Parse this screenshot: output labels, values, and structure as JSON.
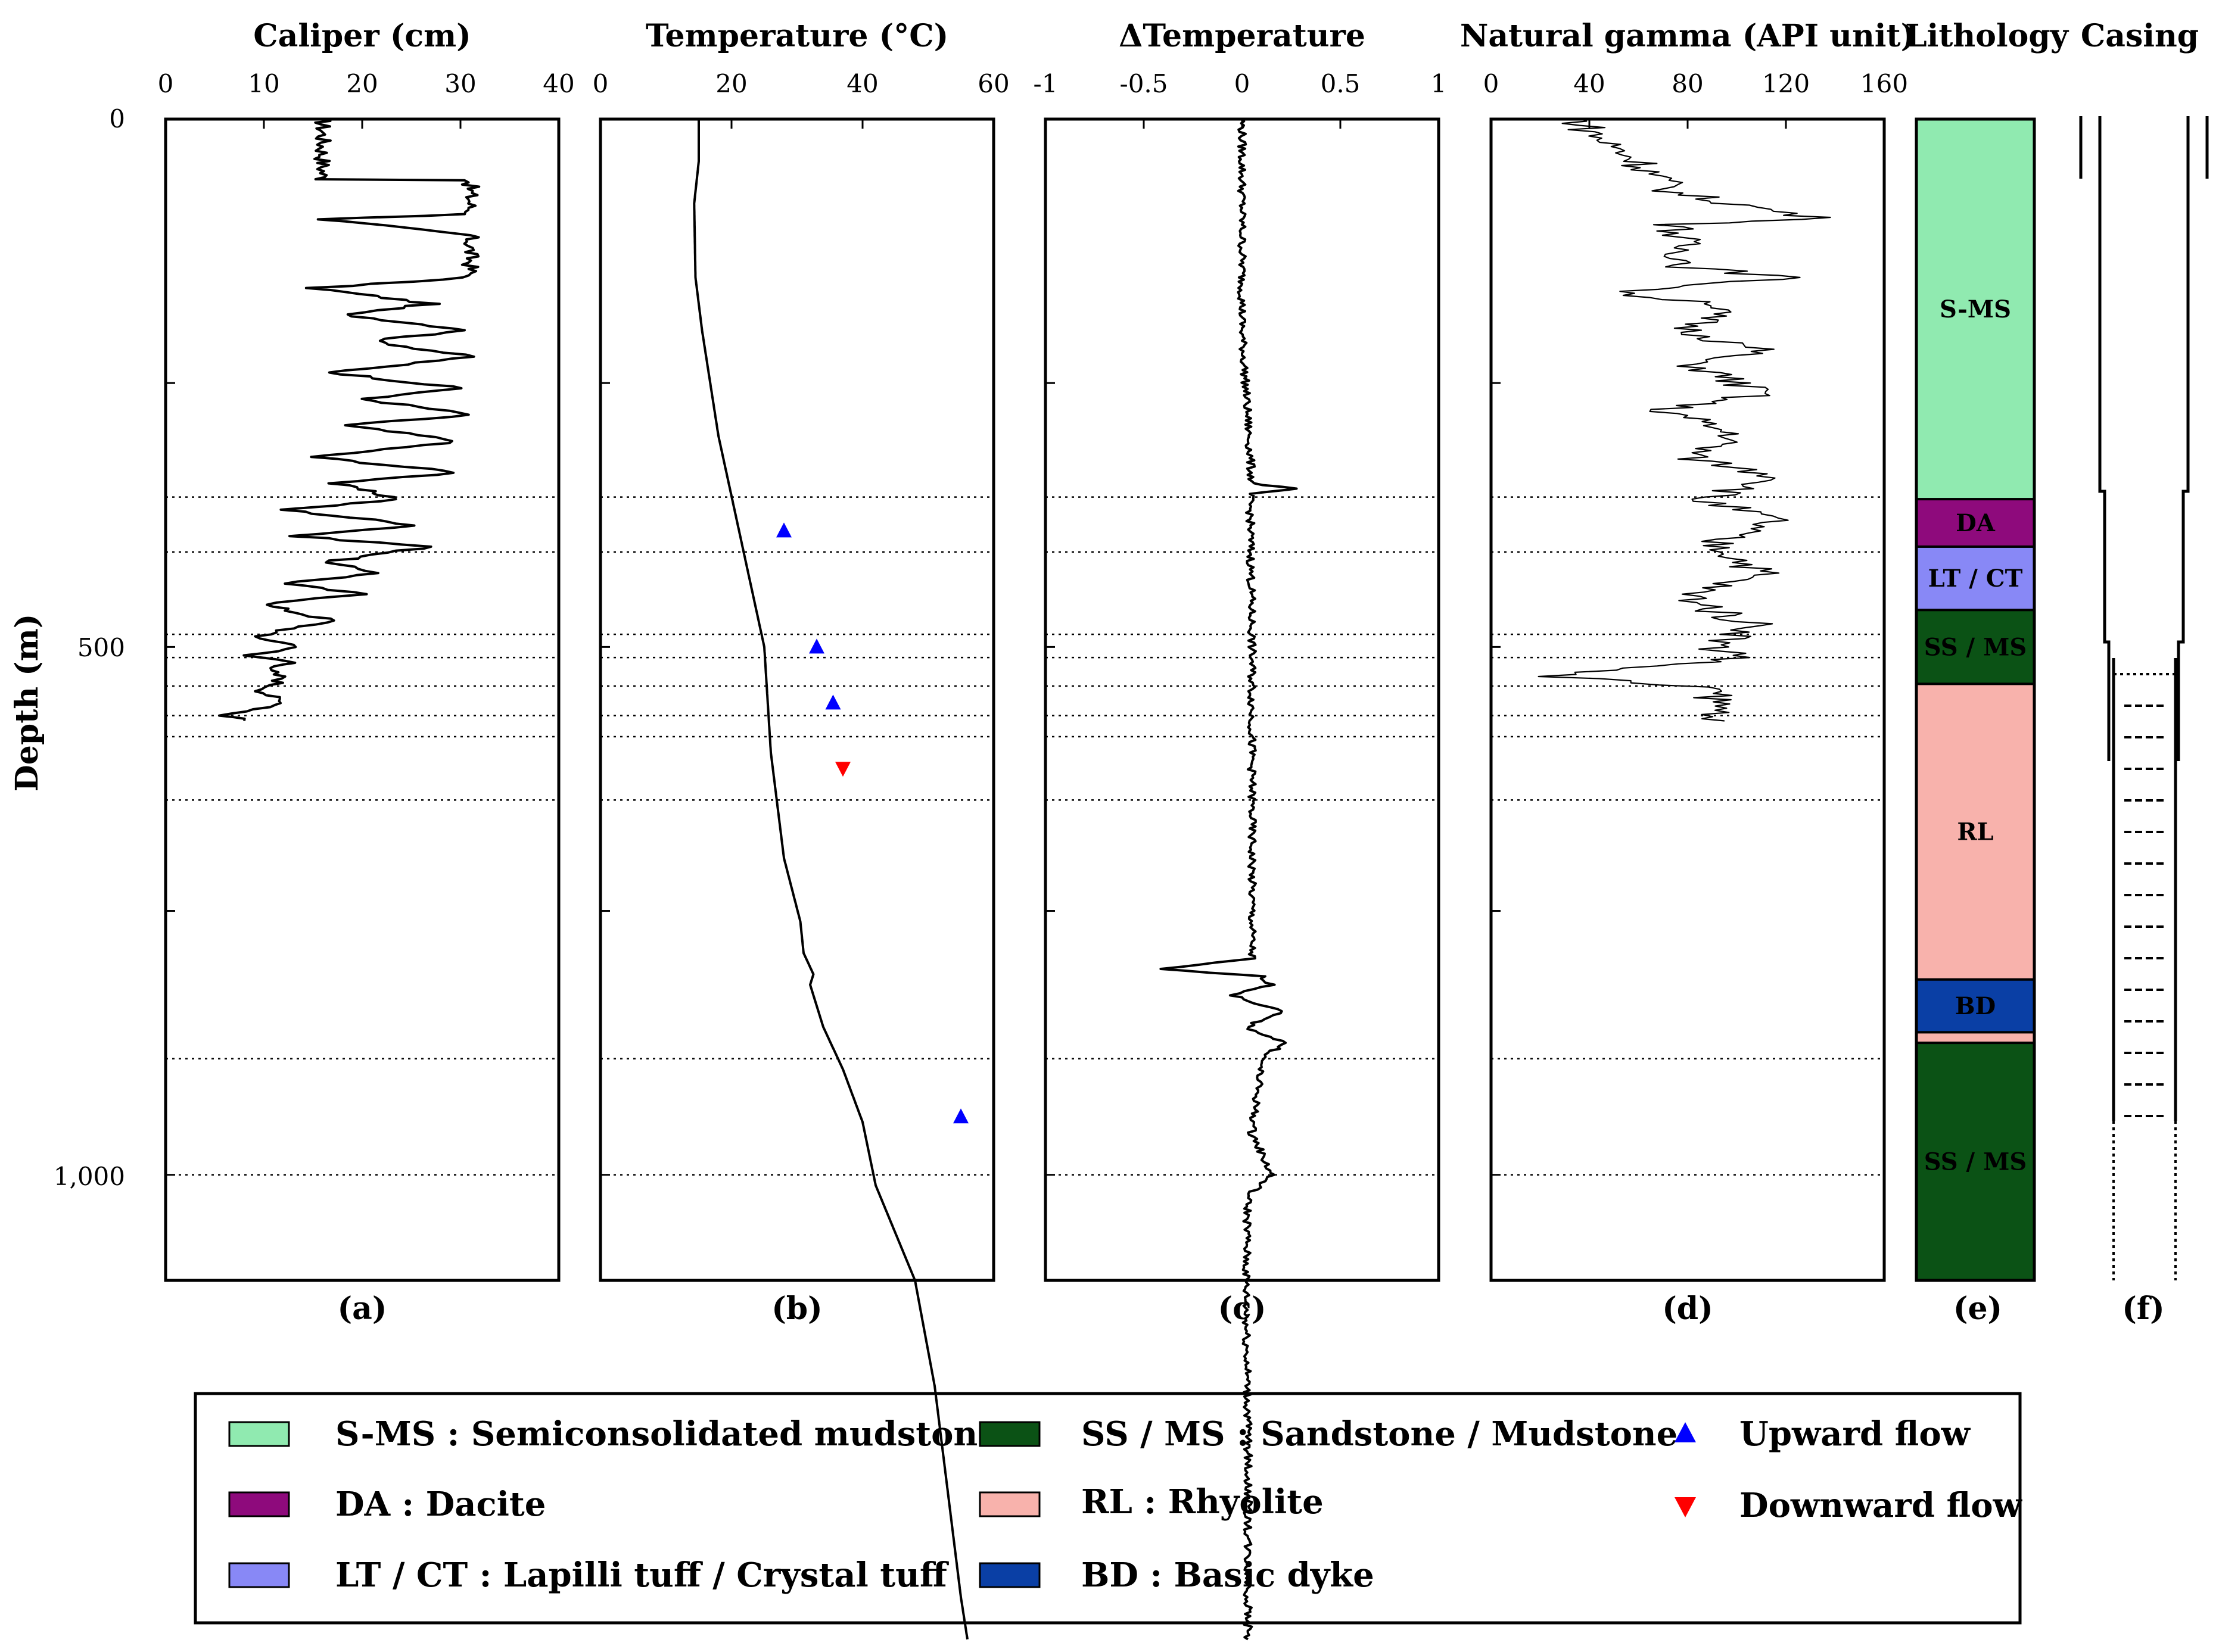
{
  "chart_data": {
    "type": "well-log",
    "y_axis": {
      "label": "Depth (m)",
      "range": [
        0,
        1100
      ],
      "ticks": [
        0,
        500,
        1000
      ],
      "tick_labels": [
        "0",
        "500",
        "1,000"
      ]
    },
    "guide_depths": [
      358,
      410,
      488,
      510,
      537,
      565,
      585,
      645,
      890,
      1000
    ],
    "tracks": [
      {
        "id": "a",
        "title": "Caliper (cm)",
        "panel_label": "(a)",
        "xlim": [
          0,
          40
        ],
        "ticks": [
          0,
          10,
          20,
          30,
          40
        ],
        "profile": [
          [
            0,
            16
          ],
          [
            5,
            16
          ],
          [
            30,
            16
          ],
          [
            57,
            16
          ],
          [
            58,
            31
          ],
          [
            70,
            31
          ],
          [
            90,
            31
          ],
          [
            95,
            16
          ],
          [
            110,
            31
          ],
          [
            150,
            31
          ],
          [
            160,
            15
          ],
          [
            175,
            27
          ],
          [
            185,
            18
          ],
          [
            200,
            31
          ],
          [
            210,
            21
          ],
          [
            225,
            31
          ],
          [
            240,
            17
          ],
          [
            255,
            30
          ],
          [
            265,
            20
          ],
          [
            280,
            31
          ],
          [
            290,
            18
          ],
          [
            305,
            30
          ],
          [
            320,
            15
          ],
          [
            335,
            30
          ],
          [
            345,
            17
          ],
          [
            360,
            24
          ],
          [
            370,
            12
          ],
          [
            385,
            26
          ],
          [
            395,
            13
          ],
          [
            405,
            27
          ],
          [
            420,
            16
          ],
          [
            430,
            22
          ],
          [
            440,
            12
          ],
          [
            450,
            20
          ],
          [
            460,
            10
          ],
          [
            475,
            17
          ],
          [
            490,
            9
          ],
          [
            500,
            14
          ],
          [
            508,
            8
          ],
          [
            515,
            14
          ],
          [
            520,
            10
          ],
          [
            530,
            12
          ],
          [
            542,
            10
          ],
          [
            555,
            12
          ],
          [
            565,
            6
          ],
          [
            568,
            8
          ],
          [
            570,
            8
          ]
        ]
      },
      {
        "id": "b",
        "title": "Temperature (°C)",
        "panel_label": "(b)",
        "xlim": [
          0,
          60
        ],
        "ticks": [
          0,
          20,
          40,
          60
        ],
        "profile": [
          [
            0,
            15
          ],
          [
            40,
            15
          ],
          [
            80,
            14.3
          ],
          [
            150,
            14.5
          ],
          [
            200,
            15.5
          ],
          [
            300,
            18
          ],
          [
            400,
            21.5
          ],
          [
            500,
            25
          ],
          [
            600,
            26
          ],
          [
            650,
            27
          ],
          [
            700,
            28
          ],
          [
            760,
            30.5
          ],
          [
            790,
            31
          ],
          [
            810,
            32.5
          ],
          [
            820,
            32
          ],
          [
            860,
            34
          ],
          [
            900,
            37
          ],
          [
            950,
            40
          ],
          [
            1010,
            42
          ],
          [
            1100,
            48
          ],
          [
            1200,
            51
          ],
          [
            1300,
            53
          ],
          [
            1400,
            55
          ],
          [
            1440,
            56
          ]
        ]
      },
      {
        "id": "c",
        "title": "ΔTemperature",
        "panel_label": "(c)",
        "xlim": [
          -1,
          1
        ],
        "ticks": [
          -1,
          -0.5,
          0,
          0.5,
          1
        ],
        "tick_labels": [
          "-1",
          "-0.5",
          "0",
          "0.5",
          "1"
        ],
        "profile": [
          [
            0,
            0
          ],
          [
            200,
            0
          ],
          [
            345,
            0.05
          ],
          [
            350,
            0.26
          ],
          [
            355,
            0.04
          ],
          [
            500,
            0.05
          ],
          [
            740,
            0.05
          ],
          [
            795,
            0.05
          ],
          [
            805,
            -0.42
          ],
          [
            812,
            0.1
          ],
          [
            820,
            0.15
          ],
          [
            830,
            -0.05
          ],
          [
            845,
            0.2
          ],
          [
            860,
            0.02
          ],
          [
            875,
            0.22
          ],
          [
            890,
            0.1
          ],
          [
            960,
            0.05
          ],
          [
            1000,
            0.15
          ],
          [
            1020,
            0.03
          ],
          [
            1100,
            0.02
          ],
          [
            1250,
            0.03
          ],
          [
            1440,
            0.03
          ]
        ]
      },
      {
        "id": "d",
        "title": "Natural gamma (API unit)",
        "panel_label": "(d)",
        "xlim": [
          0,
          160
        ],
        "ticks": [
          0,
          40,
          80,
          120,
          160
        ],
        "profile": [
          [
            0,
            35
          ],
          [
            20,
            45
          ],
          [
            40,
            60
          ],
          [
            70,
            75
          ],
          [
            95,
            135
          ],
          [
            100,
            75
          ],
          [
            140,
            80
          ],
          [
            150,
            120
          ],
          [
            165,
            50
          ],
          [
            175,
            95
          ],
          [
            200,
            80
          ],
          [
            220,
            110
          ],
          [
            230,
            80
          ],
          [
            260,
            110
          ],
          [
            275,
            70
          ],
          [
            300,
            100
          ],
          [
            320,
            80
          ],
          [
            340,
            120
          ],
          [
            360,
            85
          ],
          [
            380,
            115
          ],
          [
            400,
            90
          ],
          [
            430,
            110
          ],
          [
            450,
            80
          ],
          [
            470,
            95
          ],
          [
            480,
            110
          ],
          [
            500,
            90
          ],
          [
            510,
            105
          ],
          [
            528,
            20
          ],
          [
            530,
            40
          ],
          [
            540,
            90
          ],
          [
            570,
            95
          ]
        ]
      },
      {
        "id": "e",
        "title": "Lithology",
        "panel_label": "(e)",
        "layers": [
          {
            "from": 0,
            "to": 360,
            "code": "S-MS"
          },
          {
            "from": 360,
            "to": 405,
            "code": "DA"
          },
          {
            "from": 405,
            "to": 465,
            "code": "LT / CT"
          },
          {
            "from": 465,
            "to": 535,
            "code": "SS / MS"
          },
          {
            "from": 535,
            "to": 815,
            "code": "RL"
          },
          {
            "from": 815,
            "to": 865,
            "code": "BD"
          },
          {
            "from": 865,
            "to": 875,
            "code": "RL"
          },
          {
            "from": 875,
            "to": 1100,
            "code": "SS / MS"
          }
        ]
      },
      {
        "id": "f",
        "title": "Casing",
        "panel_label": "(f)"
      }
    ],
    "flow_markers": [
      {
        "direction": "Upward flow",
        "depth": 390,
        "temperature": 28
      },
      {
        "direction": "Upward flow",
        "depth": 500,
        "temperature": 33
      },
      {
        "direction": "Upward flow",
        "depth": 553,
        "temperature": 35.5
      },
      {
        "direction": "Downward flow",
        "depth": 615,
        "temperature": 37
      },
      {
        "direction": "Upward flow",
        "depth": 945,
        "temperature": 55
      }
    ]
  },
  "lithology_legend": [
    {
      "code": "S-MS",
      "label": "S-MS : Semiconsolidated mudstone",
      "color": "#90EAB0"
    },
    {
      "code": "DA",
      "label": "DA : Dacite",
      "color": "#8E0A7C"
    },
    {
      "code": "LT / CT",
      "label": "LT / CT : Lapilli tuff / Crystal tuff",
      "color": "#8888F6"
    },
    {
      "code": "SS / MS",
      "label": "SS / MS : Sandstone / Mudstone",
      "color": "#0B5215"
    },
    {
      "code": "RL",
      "label": "RL : Rhyolite",
      "color": "#F8B2AC"
    },
    {
      "code": "BD",
      "label": "BD : Basic dyke",
      "color": "#0A3FA5"
    }
  ],
  "flow_legend": [
    {
      "label": "Upward flow",
      "color": "#0000FF"
    },
    {
      "label": "Downward flow",
      "color": "#FF0000"
    }
  ]
}
